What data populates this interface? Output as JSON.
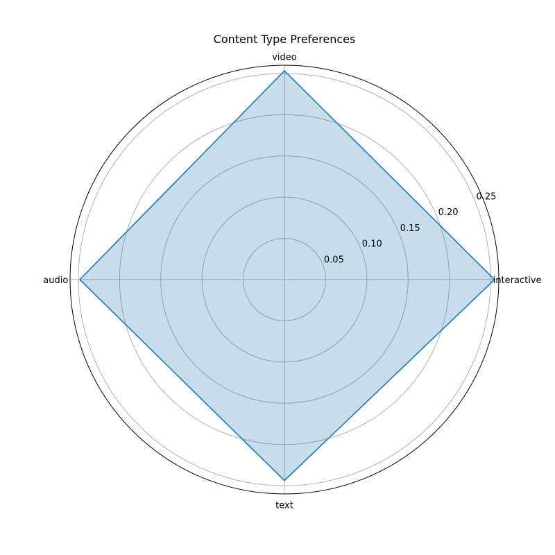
{
  "chart_data": {
    "type": "radar",
    "title": "Content Type Preferences",
    "categories": [
      "interactive",
      "video",
      "audio",
      "text"
    ],
    "values": [
      0.2548,
      0.2532,
      0.2482,
      0.2437
    ],
    "rlim": [
      0,
      0.26
    ],
    "rticks": [
      0.05,
      0.1,
      0.15,
      0.2,
      0.25
    ],
    "rtick_labels": [
      "0.05",
      "0.10",
      "0.15",
      "0.20",
      "0.25"
    ],
    "grid": true,
    "colors": {
      "line": "#1f77b4",
      "fill": "#1f77b4",
      "grid": "#b0b0b0",
      "frame": "#000000"
    }
  }
}
